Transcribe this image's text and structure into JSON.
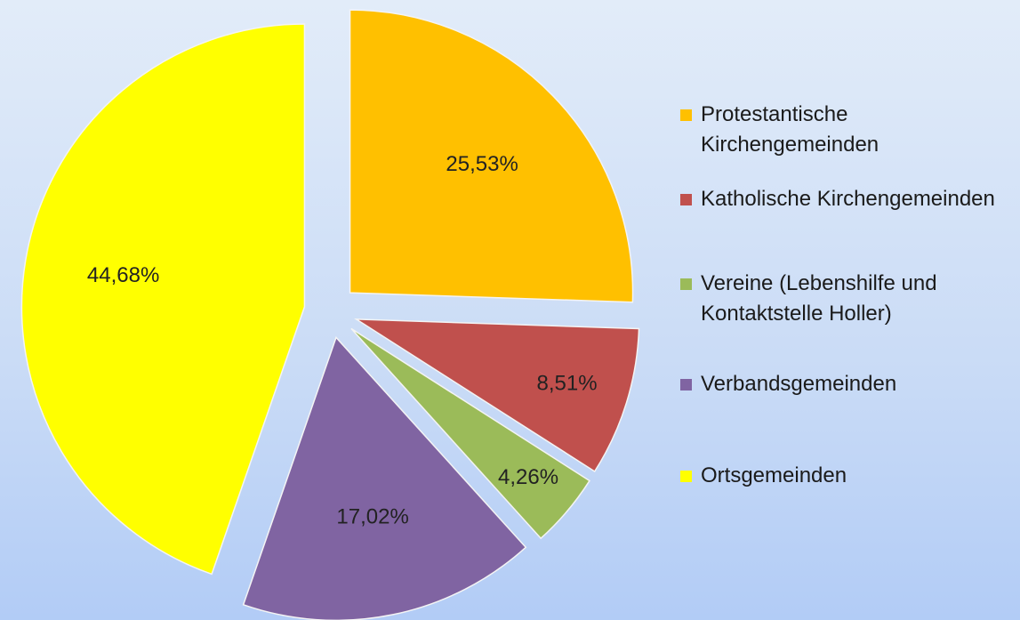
{
  "chart_data": {
    "type": "pie",
    "categories": [
      "Protestantische Kirchengemeinden",
      "Katholische Kirchengemeinden",
      "Vereine (Lebenshilfe und Kontaktstelle Holler)",
      "Verbandsgemeinden",
      "Ortsgemeinden"
    ],
    "values": [
      25.53,
      8.51,
      4.26,
      17.02,
      44.68
    ],
    "value_labels": [
      "25,53%",
      "8,51%",
      "4,26%",
      "17,02%",
      "44,68%"
    ],
    "colors": [
      "#ffc000",
      "#c0504d",
      "#9bbb59",
      "#8064a2",
      "#ffff00"
    ],
    "legend": "right"
  }
}
